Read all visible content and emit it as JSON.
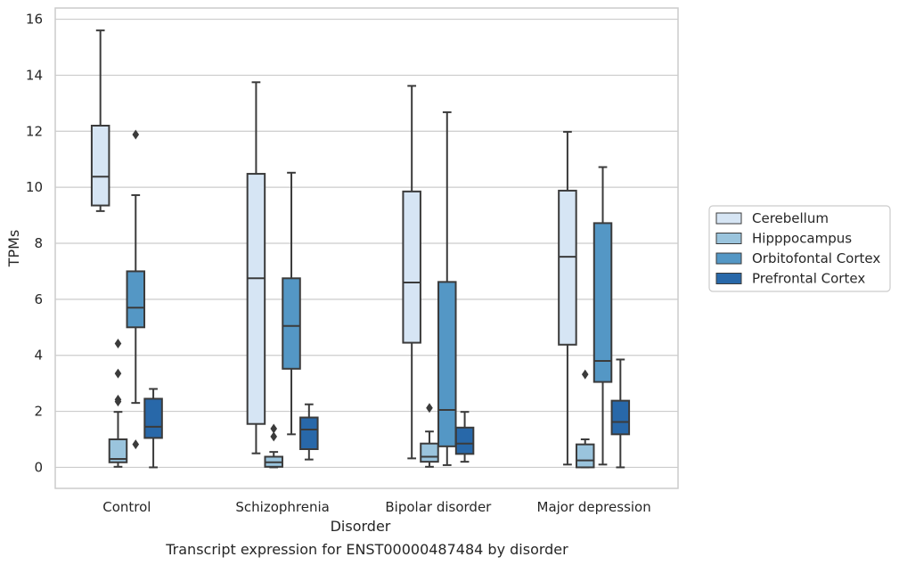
{
  "chart_data": {
    "type": "box",
    "caption": "Transcript expression for ENST00000487484 by disorder",
    "xlabel": "Disorder",
    "ylabel": "TPMs",
    "ylim": [
      -0.75,
      16.4
    ],
    "yticks": [
      0,
      2,
      4,
      6,
      8,
      10,
      12,
      14,
      16
    ],
    "grid": true,
    "legend_position": "right",
    "categories": [
      "Control",
      "Schizophrenia",
      "Bipolar disorder",
      "Major depression"
    ],
    "series": [
      {
        "name": "Cerebellum",
        "color": "#d6e5f4",
        "boxes": [
          {
            "whisker_low": 9.15,
            "q1": 9.35,
            "median": 10.38,
            "q3": 12.2,
            "whisker_high": 15.6,
            "outliers": []
          },
          {
            "whisker_low": 0.5,
            "q1": 1.55,
            "median": 6.75,
            "q3": 10.48,
            "whisker_high": 13.75,
            "outliers": []
          },
          {
            "whisker_low": 0.32,
            "q1": 4.45,
            "median": 6.6,
            "q3": 9.85,
            "whisker_high": 13.62,
            "outliers": []
          },
          {
            "whisker_low": 0.1,
            "q1": 4.38,
            "median": 7.52,
            "q3": 9.88,
            "whisker_high": 11.98,
            "outliers": []
          }
        ]
      },
      {
        "name": "Hipppocampus",
        "color": "#9ac4dd",
        "boxes": [
          {
            "whisker_low": 0.02,
            "q1": 0.18,
            "median": 0.3,
            "q3": 1.0,
            "whisker_high": 1.98,
            "outliers": [
              4.42,
              3.35,
              2.42,
              2.35
            ]
          },
          {
            "whisker_low": 0.0,
            "q1": 0.02,
            "median": 0.18,
            "q3": 0.38,
            "whisker_high": 0.55,
            "outliers": [
              1.38,
              1.1
            ]
          },
          {
            "whisker_low": 0.02,
            "q1": 0.2,
            "median": 0.38,
            "q3": 0.85,
            "whisker_high": 1.28,
            "outliers": [
              2.12
            ]
          },
          {
            "whisker_low": 0.0,
            "q1": 0.0,
            "median": 0.25,
            "q3": 0.82,
            "whisker_high": 1.0,
            "outliers": [
              3.32
            ]
          }
        ]
      },
      {
        "name": "Orbitofontal Cortex",
        "color": "#5497c5",
        "boxes": [
          {
            "whisker_low": 2.3,
            "q1": 5.0,
            "median": 5.7,
            "q3": 7.0,
            "whisker_high": 9.72,
            "outliers": [
              11.88,
              0.82
            ]
          },
          {
            "whisker_low": 1.18,
            "q1": 3.52,
            "median": 5.05,
            "q3": 6.75,
            "whisker_high": 10.52,
            "outliers": []
          },
          {
            "whisker_low": 0.08,
            "q1": 0.75,
            "median": 2.05,
            "q3": 6.62,
            "whisker_high": 12.68,
            "outliers": []
          },
          {
            "whisker_low": 0.1,
            "q1": 3.05,
            "median": 3.8,
            "q3": 8.72,
            "whisker_high": 10.72,
            "outliers": []
          }
        ]
      },
      {
        "name": "Prefrontal Cortex",
        "color": "#2868a9",
        "boxes": [
          {
            "whisker_low": 0.0,
            "q1": 1.05,
            "median": 1.45,
            "q3": 2.45,
            "whisker_high": 2.8,
            "outliers": []
          },
          {
            "whisker_low": 0.28,
            "q1": 0.65,
            "median": 1.35,
            "q3": 1.78,
            "whisker_high": 2.25,
            "outliers": []
          },
          {
            "whisker_low": 0.2,
            "q1": 0.48,
            "median": 0.85,
            "q3": 1.42,
            "whisker_high": 1.98,
            "outliers": []
          },
          {
            "whisker_low": 0.0,
            "q1": 1.18,
            "median": 1.62,
            "q3": 2.38,
            "whisker_high": 3.85,
            "outliers": []
          }
        ]
      }
    ]
  }
}
